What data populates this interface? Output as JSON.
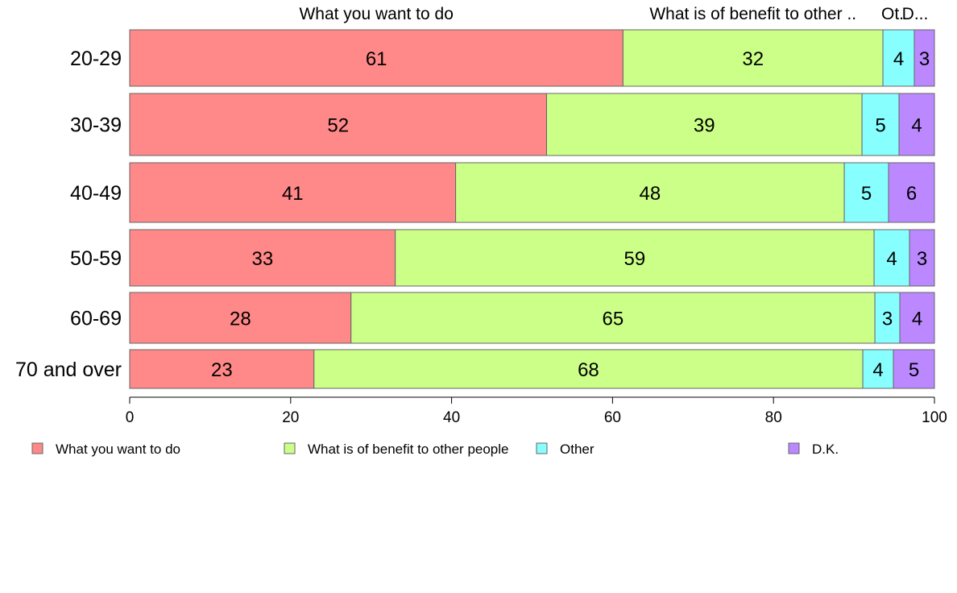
{
  "chart_data": {
    "type": "bar",
    "orientation": "horizontal",
    "stacked": true,
    "categories": [
      "20-29",
      "30-39",
      "40-49",
      "50-59",
      "60-69",
      "70 and over"
    ],
    "series": [
      {
        "name": "What you want to do",
        "color": "#ff8888",
        "values": [
          61.3,
          51.8,
          40.5,
          33.0,
          27.5,
          22.9
        ]
      },
      {
        "name": "What is of benefit to other people",
        "color": "#ccff88",
        "values": [
          32.3,
          39.2,
          48.3,
          59.5,
          65.1,
          68.2
        ]
      },
      {
        "name": "Other",
        "color": "#88ffff",
        "values": [
          3.9,
          4.6,
          5.5,
          4.4,
          3.1,
          3.8
        ]
      },
      {
        "name": "D.K.",
        "color": "#bb88ff",
        "values": [
          2.5,
          4.4,
          5.7,
          3.1,
          4.3,
          5.1
        ]
      }
    ],
    "value_labels": [
      [
        "61",
        "32",
        "4",
        "3"
      ],
      [
        "52",
        "39",
        "5",
        "4"
      ],
      [
        "41",
        "48",
        "5",
        "6"
      ],
      [
        "33",
        "59",
        "4",
        "3"
      ],
      [
        "28",
        "65",
        "3",
        "4"
      ],
      [
        "23",
        "68",
        "4",
        "5"
      ]
    ],
    "column_headers": [
      "What you want to do",
      "What is of benefit to other ..",
      "Ot.",
      "D..."
    ],
    "xlim": [
      0,
      100
    ],
    "xticks": [
      "0",
      "20",
      "40",
      "60",
      "80",
      "100"
    ],
    "grid": false,
    "legend_position": "bottom"
  }
}
